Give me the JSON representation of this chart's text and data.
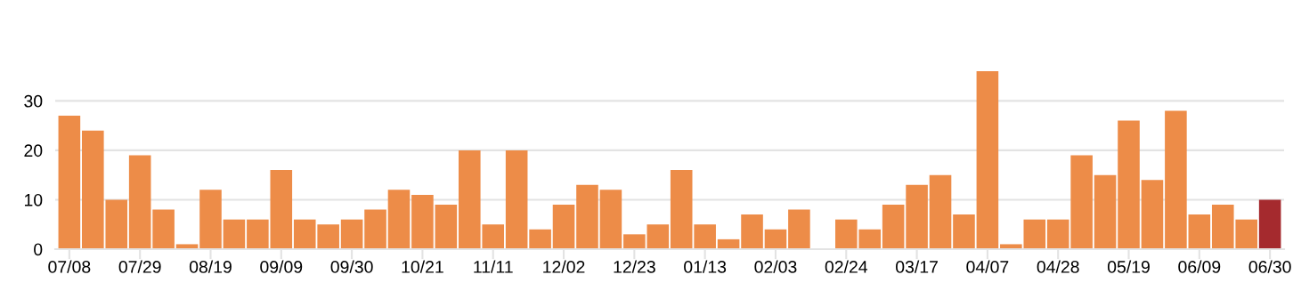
{
  "chart_data": {
    "type": "bar",
    "categories": [
      "07/08",
      null,
      null,
      "07/29",
      null,
      null,
      "08/19",
      null,
      null,
      "09/09",
      null,
      null,
      "09/30",
      null,
      null,
      "10/21",
      null,
      null,
      "11/11",
      null,
      null,
      "12/02",
      null,
      null,
      "12/23",
      null,
      null,
      "01/13",
      null,
      null,
      "02/03",
      null,
      null,
      "02/24",
      null,
      null,
      "03/17",
      null,
      null,
      "04/07",
      null,
      null,
      "04/28",
      null,
      null,
      "05/19",
      null,
      null,
      "06/09",
      null,
      null,
      "06/30"
    ],
    "values": [
      27,
      24,
      10,
      19,
      8,
      1,
      12,
      6,
      6,
      16,
      6,
      5,
      6,
      8,
      12,
      11,
      9,
      20,
      5,
      20,
      4,
      9,
      13,
      12,
      3,
      5,
      16,
      5,
      2,
      7,
      4,
      8,
      0,
      6,
      4,
      9,
      13,
      15,
      7,
      36,
      1,
      6,
      6,
      19,
      15,
      26,
      14,
      28,
      7,
      9,
      6,
      10
    ],
    "colors": [
      "#ed8c48",
      "#ed8c48",
      "#ed8c48",
      "#ed8c48",
      "#ed8c48",
      "#ed8c48",
      "#ed8c48",
      "#ed8c48",
      "#ed8c48",
      "#ed8c48",
      "#ed8c48",
      "#ed8c48",
      "#ed8c48",
      "#ed8c48",
      "#ed8c48",
      "#ed8c48",
      "#ed8c48",
      "#ed8c48",
      "#ed8c48",
      "#ed8c48",
      "#ed8c48",
      "#ed8c48",
      "#ed8c48",
      "#ed8c48",
      "#ed8c48",
      "#ed8c48",
      "#ed8c48",
      "#ed8c48",
      "#ed8c48",
      "#ed8c48",
      "#ed8c48",
      "#ed8c48",
      "#ed8c48",
      "#ed8c48",
      "#ed8c48",
      "#ed8c48",
      "#ed8c48",
      "#ed8c48",
      "#ed8c48",
      "#ed8c48",
      "#ed8c48",
      "#ed8c48",
      "#ed8c48",
      "#ed8c48",
      "#ed8c48",
      "#ed8c48",
      "#ed8c48",
      "#ed8c48",
      "#ed8c48",
      "#ed8c48",
      "#ed8c48",
      "#a52a2e"
    ],
    "ylim": [
      0,
      36
    ],
    "yticks": [
      0,
      10,
      20,
      30
    ],
    "grid": "y"
  }
}
